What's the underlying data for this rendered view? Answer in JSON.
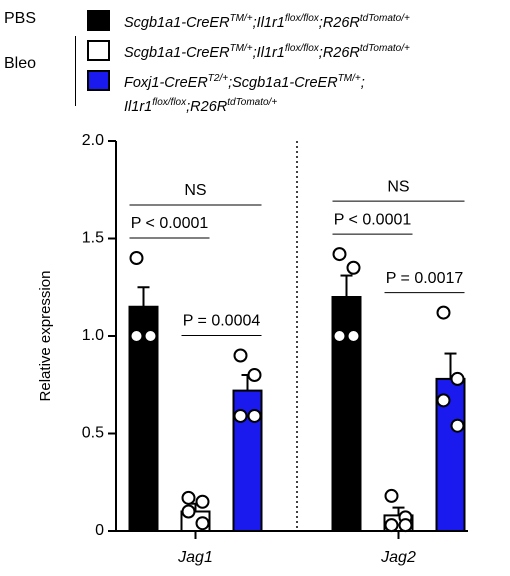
{
  "chart_data": {
    "type": "bar",
    "ylabel": "Relative expression",
    "categories": [
      "Jag1",
      "Jag2"
    ],
    "ylim": [
      0,
      2
    ],
    "yticks": [
      0,
      0.5,
      {
        "value": 1,
        "label": "1.0"
      },
      1.5,
      {
        "value": 2,
        "label": "2.0"
      }
    ],
    "series": [
      {
        "group": "PBS",
        "color": "#000000",
        "name": [
          [
            {
              "text": "Scgb1a1-CreER"
            },
            {
              "text": "TM/+",
              "sup": true
            },
            {
              "text": ";Il1r1"
            },
            {
              "text": "flox/flox",
              "sup": true
            },
            {
              "text": ";R26R"
            },
            {
              "text": "tdTomato/+",
              "sup": true
            }
          ]
        ],
        "values": [
          1.15,
          1.2
        ],
        "errors": [
          0.1,
          0.11
        ],
        "points": [
          [
            1.4,
            1.0,
            1.0,
            1.0
          ],
          [
            1.42,
            1.35,
            1.0,
            1.0
          ]
        ]
      },
      {
        "group": "Bleo",
        "color": "#ffffff",
        "name": [
          [
            {
              "text": "Scgb1a1-CreER"
            },
            {
              "text": "TM/+",
              "sup": true
            },
            {
              "text": ";Il1r1"
            },
            {
              "text": "flox/flox",
              "sup": true
            },
            {
              "text": ";R26R"
            },
            {
              "text": "tdTomato/+",
              "sup": true
            }
          ]
        ],
        "values": [
          0.1,
          0.08
        ],
        "errors": [
          0.04,
          0.04
        ],
        "points": [
          [
            0.17,
            0.15,
            0.1,
            0.04
          ],
          [
            0.18,
            0.07,
            0.03,
            0.03
          ]
        ]
      },
      {
        "group": "Bleo",
        "color": "#1a1aee",
        "name": [
          [
            {
              "text": "Foxj1-CreER"
            },
            {
              "text": "T2/+",
              "sup": true
            },
            {
              "text": ";Scgb1a1-CreER"
            },
            {
              "text": "TM/+",
              "sup": true
            },
            {
              "text": ";"
            }
          ],
          [
            {
              "text": "Il1r1"
            },
            {
              "text": "flox/flox",
              "sup": true
            },
            {
              "text": ";R26R"
            },
            {
              "text": "tdTomato/+",
              "sup": true
            }
          ]
        ],
        "values": [
          0.72,
          0.78
        ],
        "errors": [
          0.08,
          0.13
        ],
        "points": [
          [
            0.9,
            0.8,
            0.59,
            0.59
          ],
          [
            1.12,
            0.78,
            0.67,
            0.54
          ]
        ]
      }
    ],
    "annotations": [
      {
        "category": 0,
        "from": 0,
        "to": 1,
        "label": "P < 0.0001"
      },
      {
        "category": 0,
        "from": 1,
        "to": 2,
        "label": "P = 0.0004"
      },
      {
        "category": 0,
        "from": 0,
        "to": 2,
        "label": "NS"
      },
      {
        "category": 1,
        "from": 0,
        "to": 1,
        "label": "P < 0.0001"
      },
      {
        "category": 1,
        "from": 1,
        "to": 2,
        "label": "P = 0.0017"
      },
      {
        "category": 1,
        "from": 0,
        "to": 2,
        "label": "NS"
      }
    ]
  }
}
